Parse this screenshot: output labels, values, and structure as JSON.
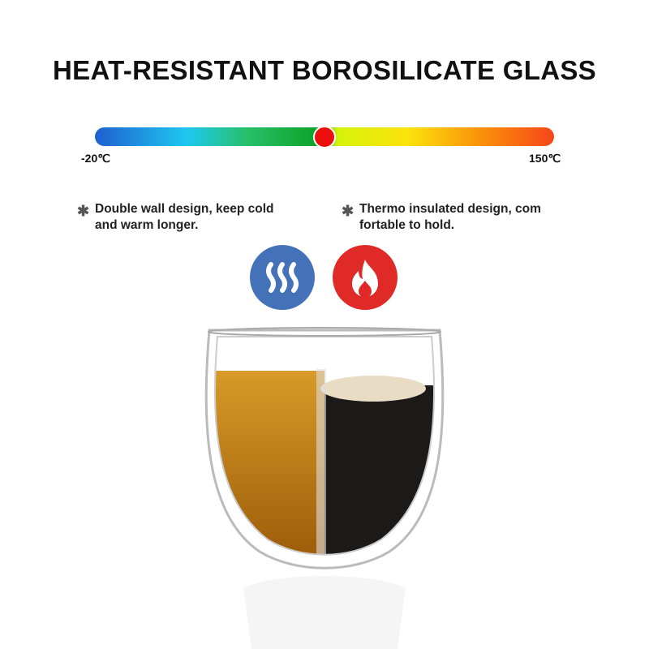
{
  "title": "HEAT-RESISTANT BOROSILICATE GLASS",
  "scale": {
    "min_label": "-20℃",
    "max_label": "150℃",
    "marker_fraction": 0.5
  },
  "features": [
    {
      "line1": "Double wall design,   keep cold",
      "line2": "and warm longer."
    },
    {
      "line1": "Thermo insulated design, com",
      "line2": "fortable to hold."
    }
  ],
  "icons": [
    {
      "name": "cold-waves-icon",
      "color": "#4472b8"
    },
    {
      "name": "flame-icon",
      "color": "#e02a27"
    }
  ],
  "colors": {
    "liquid_left": "#b8740f",
    "liquid_right": "#1c1a18"
  }
}
